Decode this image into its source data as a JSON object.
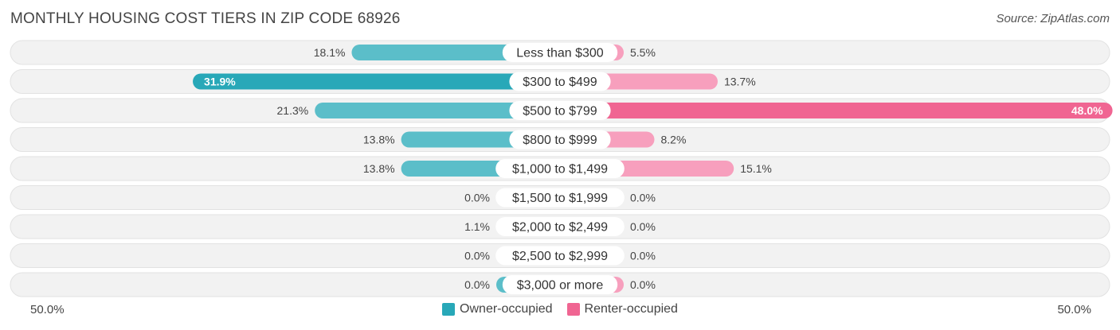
{
  "chart_data": {
    "type": "bar",
    "title": "MONTHLY HOUSING COST TIERS IN ZIP CODE 68926",
    "source": "Source: ZipAtlas.com",
    "categories": [
      "Less than $300",
      "$300 to $499",
      "$500 to $799",
      "$800 to $999",
      "$1,000 to $1,499",
      "$1,500 to $1,999",
      "$2,000 to $2,499",
      "$2,500 to $2,999",
      "$3,000 or more"
    ],
    "series": [
      {
        "name": "Owner-occupied",
        "values": [
          18.1,
          31.9,
          21.3,
          13.8,
          13.8,
          0.0,
          1.1,
          0.0,
          0.0
        ],
        "labels": [
          "18.1%",
          "31.9%",
          "21.3%",
          "13.8%",
          "13.8%",
          "0.0%",
          "1.1%",
          "0.0%",
          "0.0%"
        ],
        "color": "#5bbec9",
        "strong_color": "#28a8b8"
      },
      {
        "name": "Renter-occupied",
        "values": [
          5.5,
          13.7,
          48.0,
          8.2,
          15.1,
          0.0,
          0.0,
          0.0,
          0.0
        ],
        "labels": [
          "5.5%",
          "13.7%",
          "48.0%",
          "8.2%",
          "15.1%",
          "0.0%",
          "0.0%",
          "0.0%",
          "0.0%"
        ],
        "color": "#f79fbd",
        "strong_color": "#f06592"
      }
    ],
    "axis_min_label": "50.0%",
    "axis_max_label": "50.0%",
    "xlim": [
      -50,
      50
    ],
    "legend": "bottom-center"
  }
}
